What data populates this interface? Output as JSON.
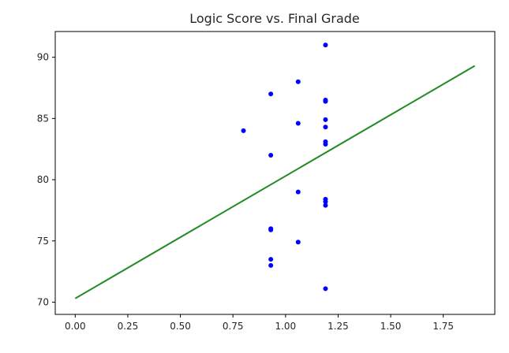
{
  "chart_data": {
    "type": "scatter",
    "title": "Logic Score vs. Final Grade",
    "xlabel": "",
    "ylabel": "",
    "xlim": [
      -0.095,
      1.995
    ],
    "ylim": [
      69.0,
      92.1
    ],
    "x_ticks": [
      0.0,
      0.25,
      0.5,
      0.75,
      1.0,
      1.25,
      1.5,
      1.75
    ],
    "x_tick_labels": [
      "0.00",
      "0.25",
      "0.50",
      "0.75",
      "1.00",
      "1.25",
      "1.50",
      "1.75"
    ],
    "y_ticks": [
      70,
      75,
      80,
      85,
      90
    ],
    "y_tick_labels": [
      "70",
      "75",
      "80",
      "85",
      "90"
    ],
    "grid": false,
    "colors": {
      "points": "#0000ff",
      "line": "#228b22"
    },
    "series": [
      {
        "type": "scatter",
        "points": [
          {
            "x": 0.8,
            "y": 84.0
          },
          {
            "x": 0.93,
            "y": 87.0
          },
          {
            "x": 0.93,
            "y": 82.0
          },
          {
            "x": 0.93,
            "y": 76.0
          },
          {
            "x": 0.93,
            "y": 75.9
          },
          {
            "x": 0.93,
            "y": 73.5
          },
          {
            "x": 0.93,
            "y": 73.0
          },
          {
            "x": 1.06,
            "y": 88.0
          },
          {
            "x": 1.06,
            "y": 84.6
          },
          {
            "x": 1.06,
            "y": 79.0
          },
          {
            "x": 1.06,
            "y": 74.9
          },
          {
            "x": 1.19,
            "y": 91.0
          },
          {
            "x": 1.19,
            "y": 86.5
          },
          {
            "x": 1.19,
            "y": 86.4
          },
          {
            "x": 1.19,
            "y": 84.9
          },
          {
            "x": 1.19,
            "y": 84.3
          },
          {
            "x": 1.19,
            "y": 83.1
          },
          {
            "x": 1.19,
            "y": 82.9
          },
          {
            "x": 1.19,
            "y": 78.4
          },
          {
            "x": 1.19,
            "y": 78.2
          },
          {
            "x": 1.19,
            "y": 77.9
          },
          {
            "x": 1.19,
            "y": 71.1
          }
        ]
      },
      {
        "type": "line",
        "points": [
          {
            "x": 0.0,
            "y": 70.3
          },
          {
            "x": 1.9,
            "y": 89.3
          }
        ]
      }
    ]
  }
}
